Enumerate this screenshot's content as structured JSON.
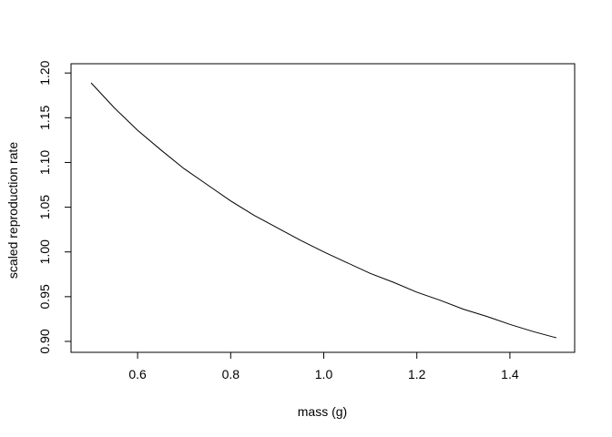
{
  "chart_data": {
    "type": "line",
    "title": "",
    "xlabel": "mass (g)",
    "ylabel": "scaled reproduction rate",
    "xlim": [
      0.5,
      1.5
    ],
    "ylim": [
      0.9,
      1.19
    ],
    "xticks": [
      {
        "value": 0.6,
        "label": "0.6"
      },
      {
        "value": 0.8,
        "label": "0.8"
      },
      {
        "value": 1.0,
        "label": "1.0"
      },
      {
        "value": 1.2,
        "label": "1.2"
      },
      {
        "value": 1.4,
        "label": "1.4"
      }
    ],
    "yticks": [
      {
        "value": 0.9,
        "label": "0.90"
      },
      {
        "value": 0.95,
        "label": "0.95"
      },
      {
        "value": 1.0,
        "label": "1.00"
      },
      {
        "value": 1.05,
        "label": "1.05"
      },
      {
        "value": 1.1,
        "label": "1.10"
      },
      {
        "value": 1.15,
        "label": "1.15"
      },
      {
        "value": 1.2,
        "label": "1.20"
      }
    ],
    "grid": false,
    "legend": "none",
    "series": [
      {
        "color": "#000000",
        "x": [
          0.5,
          0.55,
          0.6,
          0.65,
          0.7,
          0.75,
          0.8,
          0.85,
          0.9,
          0.95,
          1.0,
          1.05,
          1.1,
          1.15,
          1.2,
          1.25,
          1.3,
          1.35,
          1.4,
          1.45,
          1.5
        ],
        "y": [
          1.189,
          1.161,
          1.136,
          1.114,
          1.093,
          1.075,
          1.057,
          1.041,
          1.027,
          1.013,
          1.0,
          0.988,
          0.976,
          0.966,
          0.955,
          0.946,
          0.936,
          0.928,
          0.919,
          0.911,
          0.904
        ]
      }
    ]
  }
}
